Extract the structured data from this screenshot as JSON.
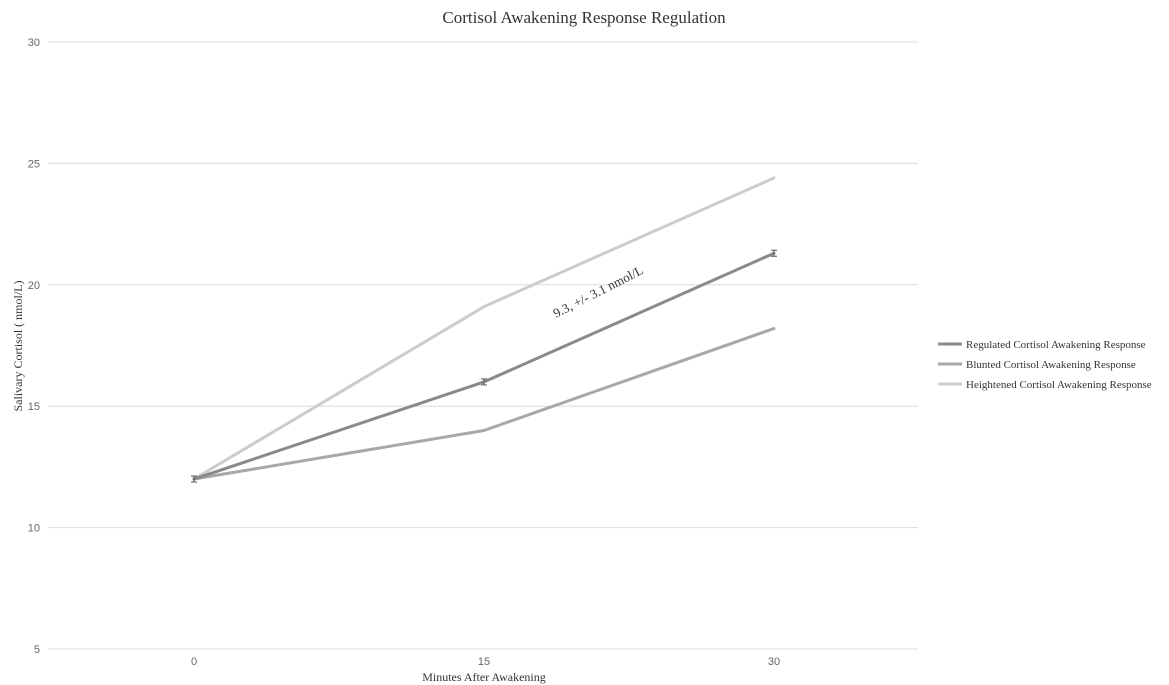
{
  "chart_data": {
    "type": "line",
    "title": "Cortisol Awakening Response Regulation",
    "xlabel": "Minutes After Awakening",
    "ylabel": "Salivary Cortisol ( nmol/L)",
    "categories": [
      "0",
      "15",
      "30"
    ],
    "ylim": [
      5,
      30
    ],
    "yticks": [
      "5",
      "10",
      "15",
      "20",
      "25",
      "30"
    ],
    "grid": "horizontal",
    "legend_position": "right",
    "series": [
      {
        "name": "Regulated Cortisol Awakening Response",
        "values": [
          12,
          16,
          21.3
        ],
        "color": "#8a8a8a",
        "error_bars": true
      },
      {
        "name": "Blunted Cortisol Awakening Response",
        "values": [
          12,
          14,
          18.2
        ],
        "color": "#a8a8a8"
      },
      {
        "name": "Heightened Cortisol Awakening Response",
        "values": [
          12,
          19.1,
          24.4
        ],
        "color": "#cccccc"
      }
    ],
    "annotations": [
      {
        "text": "9.3, +/- 3.1 nmol/L"
      }
    ]
  }
}
